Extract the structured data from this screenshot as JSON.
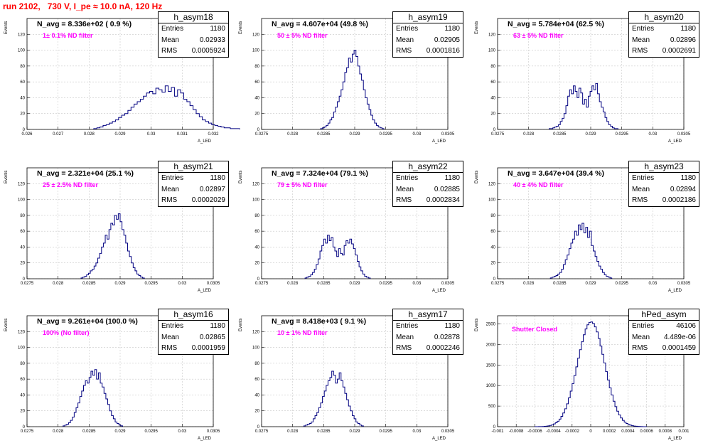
{
  "title": "run 2102,   730 V, I_pe ≈ 10.0 nA, 120 Hz",
  "colors": {
    "title": "#ff0000",
    "filter_text": "#ff00ff",
    "hist_line": "#000080",
    "grid": "#c8c8c8"
  },
  "chart_data": [
    {
      "type": "bar",
      "hist_name": "h_asym18",
      "entries": "1180",
      "mean": "0.02933",
      "rms": "0.0005924",
      "n_avg": "N_avg = 8.336e+02 ( 0.9 %)",
      "filter": "1± 0.1% ND filter",
      "xlim": [
        0.026,
        0.032
      ],
      "ylim": [
        0,
        140
      ],
      "xticks": [
        "0.026",
        "0.027",
        "0.028",
        "0.029",
        "0.03",
        "0.031",
        "0.032"
      ],
      "yticks": [
        "0",
        "20",
        "40",
        "60",
        "80",
        "100",
        "120"
      ],
      "ylabel": "Events",
      "xlabel": "A_LED",
      "bins": {
        "start": 0.02815,
        "width": 0.0001,
        "values": [
          1,
          2,
          3,
          5,
          6,
          8,
          10,
          12,
          15,
          18,
          20,
          24,
          28,
          32,
          35,
          38,
          42,
          46,
          48,
          45,
          52,
          50,
          47,
          55,
          48,
          53,
          42,
          50,
          46,
          38,
          35,
          30,
          25,
          20,
          16,
          12,
          10,
          8,
          6,
          5,
          4,
          3,
          2,
          2,
          1,
          1,
          1
        ]
      }
    },
    {
      "type": "bar",
      "hist_name": "h_asym19",
      "entries": "1180",
      "mean": "0.02905",
      "rms": "0.0001816",
      "n_avg": "N_avg = 4.607e+04 (49.8 %)",
      "filter": "50 ± 5% ND filter",
      "xlim": [
        0.0275,
        0.0305
      ],
      "ylim": [
        0,
        140
      ],
      "xticks": [
        "0.0275",
        "0.028",
        "0.0285",
        "0.029",
        "0.0295",
        "0.03",
        "0.0305"
      ],
      "yticks": [
        "0",
        "20",
        "40",
        "60",
        "80",
        "100",
        "120"
      ],
      "ylabel": "Events",
      "xlabel": "A_LED",
      "bins": {
        "start": 0.02845,
        "width": 3e-05,
        "values": [
          1,
          2,
          3,
          5,
          8,
          12,
          15,
          22,
          28,
          35,
          42,
          50,
          60,
          72,
          78,
          90,
          85,
          95,
          100,
          92,
          80,
          70,
          62,
          50,
          40,
          32,
          25,
          18,
          12,
          8,
          5,
          3,
          2,
          1
        ]
      }
    },
    {
      "type": "bar",
      "hist_name": "h_asym20",
      "entries": "1180",
      "mean": "0.02896",
      "rms": "0.0002691",
      "n_avg": "N_avg = 5.784e+04 (62.5 %)",
      "filter": "63 ± 5% ND filter",
      "xlim": [
        0.0275,
        0.0305
      ],
      "ylim": [
        0,
        140
      ],
      "xticks": [
        "0.0275",
        "0.028",
        "0.0285",
        "0.029",
        "0.0295",
        "0.03",
        "0.0305"
      ],
      "yticks": [
        "0",
        "20",
        "40",
        "60",
        "80",
        "100",
        "120"
      ],
      "ylabel": "Events",
      "xlabel": "A_LED",
      "bins": {
        "start": 0.02833,
        "width": 3e-05,
        "values": [
          1,
          1,
          2,
          3,
          4,
          6,
          10,
          14,
          20,
          30,
          42,
          50,
          45,
          55,
          48,
          40,
          52,
          46,
          32,
          38,
          28,
          42,
          48,
          55,
          50,
          58,
          45,
          35,
          28,
          22,
          15,
          10,
          6,
          4,
          2,
          1,
          1
        ]
      }
    },
    {
      "type": "bar",
      "hist_name": "h_asym21",
      "entries": "1180",
      "mean": "0.02897",
      "rms": "0.0002029",
      "n_avg": "N_avg = 2.321e+04 (25.1 %)",
      "filter": "25 ± 2.5% ND filter",
      "xlim": [
        0.0275,
        0.0305
      ],
      "ylim": [
        0,
        140
      ],
      "xticks": [
        "0.0275",
        "0.028",
        "0.0285",
        "0.029",
        "0.0295",
        "0.03",
        "0.0305"
      ],
      "yticks": [
        "0",
        "20",
        "40",
        "60",
        "80",
        "100",
        "120"
      ],
      "ylabel": "Events",
      "xlabel": "A_LED",
      "bins": {
        "start": 0.02837,
        "width": 3e-05,
        "values": [
          1,
          2,
          3,
          5,
          7,
          10,
          12,
          16,
          20,
          26,
          32,
          40,
          45,
          55,
          50,
          62,
          70,
          68,
          80,
          75,
          82,
          72,
          62,
          55,
          45,
          35,
          28,
          20,
          14,
          10,
          6,
          4,
          2,
          1
        ]
      }
    },
    {
      "type": "bar",
      "hist_name": "h_asym22",
      "entries": "1180",
      "mean": "0.02885",
      "rms": "0.0002834",
      "n_avg": "N_avg = 7.324e+04 (79.1 %)",
      "filter": "79 ± 5% ND filter",
      "xlim": [
        0.0275,
        0.0305
      ],
      "ylim": [
        0,
        140
      ],
      "xticks": [
        "0.0275",
        "0.028",
        "0.0285",
        "0.029",
        "0.0295",
        "0.03",
        "0.0305"
      ],
      "yticks": [
        "0",
        "20",
        "40",
        "60",
        "80",
        "100",
        "120"
      ],
      "ylabel": "Events",
      "xlabel": "A_LED",
      "bins": {
        "start": 0.0282,
        "width": 3e-05,
        "values": [
          1,
          2,
          3,
          5,
          8,
          12,
          18,
          25,
          35,
          42,
          50,
          45,
          55,
          48,
          52,
          40,
          35,
          28,
          38,
          32,
          30,
          42,
          48,
          45,
          50,
          44,
          38,
          30,
          22,
          15,
          10,
          6,
          3,
          2,
          1
        ]
      }
    },
    {
      "type": "bar",
      "hist_name": "h_asym23",
      "entries": "1180",
      "mean": "0.02894",
      "rms": "0.0002186",
      "n_avg": "N_avg = 3.647e+04 (39.4 %)",
      "filter": "40 ± 4% ND filter",
      "xlim": [
        0.0275,
        0.0305
      ],
      "ylim": [
        0,
        140
      ],
      "xticks": [
        "0.0275",
        "0.028",
        "0.0285",
        "0.029",
        "0.0295",
        "0.03",
        "0.0305"
      ],
      "yticks": [
        "0",
        "20",
        "40",
        "60",
        "80",
        "100",
        "120"
      ],
      "ylabel": "Events",
      "xlabel": "A_LED",
      "bins": {
        "start": 0.02835,
        "width": 3e-05,
        "values": [
          1,
          2,
          3,
          4,
          6,
          8,
          12,
          18,
          24,
          30,
          38,
          45,
          50,
          60,
          55,
          68,
          62,
          70,
          58,
          65,
          52,
          60,
          42,
          35,
          28,
          22,
          16,
          12,
          8,
          5,
          3,
          2,
          1
        ]
      }
    },
    {
      "type": "bar",
      "hist_name": "h_asym16",
      "entries": "1180",
      "mean": "0.02865",
      "rms": "0.0001959",
      "n_avg": "N_avg = 9.261e+04 (100.0 %)",
      "filter": "100% (No filter)",
      "xlim": [
        0.0275,
        0.0305
      ],
      "ylim": [
        0,
        140
      ],
      "xticks": [
        "0.0275",
        "0.028",
        "0.0285",
        "0.029",
        "0.0295",
        "0.03",
        "0.0305"
      ],
      "yticks": [
        "0",
        "20",
        "40",
        "60",
        "80",
        "100",
        "120"
      ],
      "ylabel": "Events",
      "xlabel": "A_LED",
      "bins": {
        "start": 0.02808,
        "width": 3e-05,
        "values": [
          1,
          2,
          3,
          5,
          8,
          12,
          18,
          24,
          30,
          38,
          45,
          52,
          58,
          55,
          62,
          70,
          65,
          72,
          60,
          68,
          55,
          50,
          42,
          35,
          28,
          20,
          14,
          10,
          6,
          4,
          2,
          1
        ]
      }
    },
    {
      "type": "bar",
      "hist_name": "h_asym17",
      "entries": "1180",
      "mean": "0.02878",
      "rms": "0.0002246",
      "n_avg": "N_avg = 8.418e+03 ( 9.1 %)",
      "filter": "10 ± 1% ND filter",
      "xlim": [
        0.0275,
        0.0305
      ],
      "ylim": [
        0,
        140
      ],
      "xticks": [
        "0.0275",
        "0.028",
        "0.0285",
        "0.029",
        "0.0295",
        "0.03",
        "0.0305"
      ],
      "yticks": [
        "0",
        "20",
        "40",
        "60",
        "80",
        "100",
        "120"
      ],
      "ylabel": "Events",
      "xlabel": "A_LED",
      "bins": {
        "start": 0.02818,
        "width": 3e-05,
        "values": [
          1,
          2,
          3,
          4,
          6,
          10,
          14,
          18,
          24,
          30,
          38,
          45,
          52,
          58,
          62,
          70,
          65,
          55,
          60,
          68,
          58,
          50,
          42,
          34,
          26,
          20,
          14,
          10,
          6,
          4,
          2,
          1
        ]
      }
    },
    {
      "type": "bar",
      "hist_name": "hPed_asym",
      "entries": "46106",
      "mean": "4.489e-06",
      "rms": "0.0001459",
      "n_avg": "",
      "filter": "Shutter Closed",
      "xlim": [
        -0.001,
        0.001
      ],
      "ylim": [
        0,
        2700
      ],
      "xticks": [
        "-0.001",
        "-0.0008",
        "-0.0006",
        "-0.0004",
        "-0.0002",
        "0",
        "0.0002",
        "0.0004",
        "0.0006",
        "0.0008",
        "0.001"
      ],
      "yticks": [
        "0",
        "500",
        "1000",
        "1500",
        "2000",
        "2500"
      ],
      "ylabel": "Events",
      "xlabel": "A_LED",
      "bins": {
        "start": -0.0006,
        "width": 2e-05,
        "gauss": {
          "mu": 4.5e-06,
          "sigma": 0.0001459,
          "peak": 2550
        }
      }
    }
  ]
}
